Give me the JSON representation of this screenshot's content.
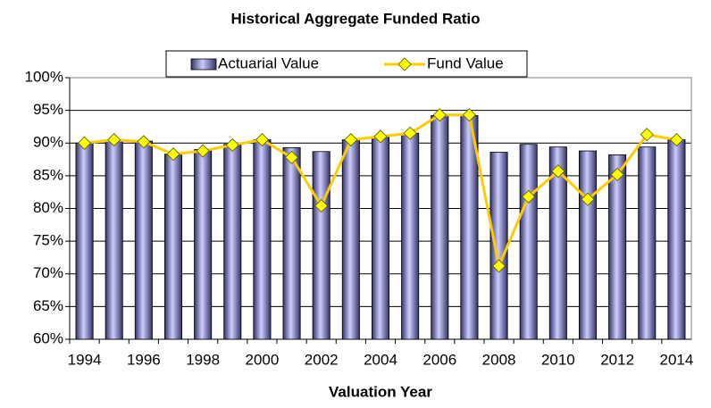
{
  "chart_data": {
    "type": "bar_line",
    "title": "Historical Aggregate Funded Ratio",
    "x_label": "Valuation Year",
    "categories": [
      "1994",
      null,
      "1996",
      null,
      "1998",
      null,
      "2000",
      null,
      "2002",
      null,
      "2004",
      null,
      "2006",
      null,
      "2008",
      null,
      "2010",
      null,
      "2012",
      null,
      "2014"
    ],
    "series": [
      {
        "name": "Actuarial Value",
        "type": "bar",
        "color": "#9999cc",
        "values": [
          90,
          90.5,
          90.3,
          88.3,
          89,
          89.8,
          90.5,
          89.3,
          88.7,
          90.5,
          91,
          91.5,
          94.2,
          94.2,
          88.6,
          89.8,
          89.4,
          88.8,
          88.2,
          89.4,
          90.5
        ]
      },
      {
        "name": "Fund Value",
        "type": "line",
        "color": "#ffcc00",
        "values": [
          90,
          90.5,
          90.2,
          88.3,
          88.8,
          89.7,
          90.5,
          87.8,
          80.4,
          90.5,
          91,
          91.5,
          94.3,
          94.3,
          71.2,
          81.8,
          85.7,
          81.4,
          85.2,
          91.3,
          90.5
        ]
      }
    ],
    "ylim": [
      60,
      100
    ],
    "yticks": [
      {
        "value": 60,
        "label": "60%"
      },
      {
        "value": 65,
        "label": "65%"
      },
      {
        "value": 70,
        "label": "70%"
      },
      {
        "value": 75,
        "label": "75%"
      },
      {
        "value": 80,
        "label": "80%"
      },
      {
        "value": 85,
        "label": "85%"
      },
      {
        "value": 90,
        "label": "90%"
      },
      {
        "value": 95,
        "label": "95%"
      },
      {
        "value": 100,
        "label": "100%"
      }
    ],
    "grid": true,
    "legend": "top"
  }
}
